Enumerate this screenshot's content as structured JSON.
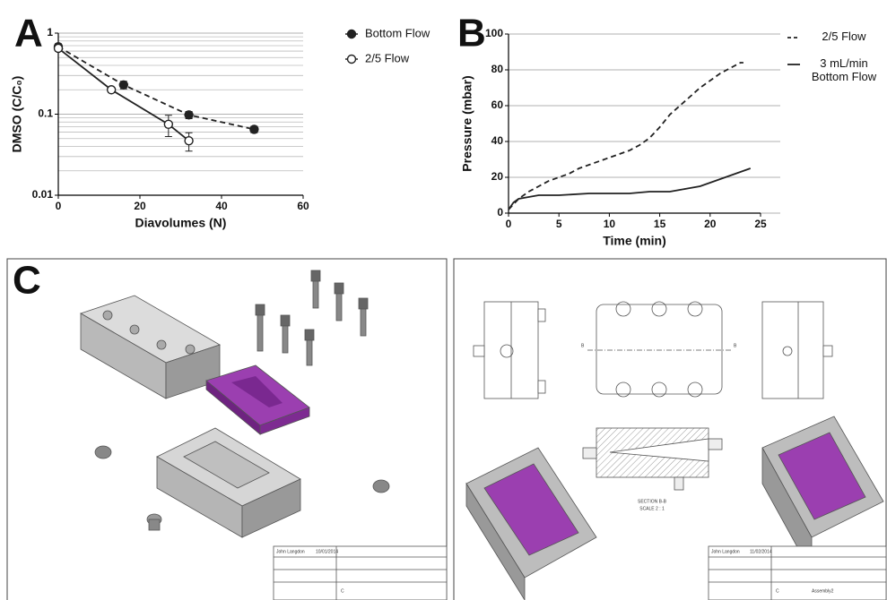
{
  "chart_data": [
    {
      "type": "line",
      "panel_label": "A",
      "xlabel": "Diavolumes (N)",
      "ylabel": "DMSO (C/C₀)",
      "xlim": [
        0,
        60
      ],
      "xticks": [
        0,
        20,
        40,
        60
      ],
      "ylim": [
        0.01,
        1
      ],
      "yticks": [
        0.01,
        0.1,
        1
      ],
      "log_y": true,
      "grid": true,
      "yminorticks": [
        0.02,
        0.03,
        0.04,
        0.05,
        0.06,
        0.07,
        0.08,
        0.09,
        0.2,
        0.3,
        0.4,
        0.5,
        0.6,
        0.7,
        0.8,
        0.9
      ],
      "legend": "right",
      "series": [
        {
          "name": "Bottom Flow",
          "color": "#222",
          "dash": true,
          "marker": "filled",
          "x": [
            0,
            16,
            32,
            48
          ],
          "values": [
            0.68,
            0.23,
            0.098,
            0.065
          ],
          "errors": [
            0.06,
            0.025,
            0.01,
            0.006
          ]
        },
        {
          "name": "2/5 Flow",
          "color": "#222",
          "dash": false,
          "marker": "open",
          "x": [
            0,
            13,
            27,
            32
          ],
          "values": [
            0.65,
            0.2,
            0.075,
            0.047
          ],
          "errors": [
            0.05,
            0.015,
            0.022,
            0.012
          ]
        }
      ]
    },
    {
      "type": "line",
      "panel_label": "B",
      "xlabel": "Time (min)",
      "ylabel": "Pressure (mbar)",
      "xlim": [
        0,
        25
      ],
      "xticks": [
        0,
        5,
        10,
        15,
        20,
        25
      ],
      "ylim": [
        0,
        100
      ],
      "yticks": [
        0,
        20,
        40,
        60,
        80,
        100
      ],
      "log_y": false,
      "grid": true,
      "legend": "right",
      "series": [
        {
          "name": "2/5 Flow",
          "color": "#222",
          "dash": true,
          "marker": "none",
          "x": [
            0,
            1,
            2,
            3,
            4,
            5,
            6,
            7,
            8,
            9,
            10,
            11,
            12,
            13,
            14,
            15,
            16,
            17,
            18,
            19,
            20,
            21,
            22,
            23,
            23.3
          ],
          "values": [
            2,
            8,
            12,
            15,
            18,
            20,
            22,
            25,
            27,
            29,
            31,
            33,
            35,
            38,
            42,
            48,
            55,
            60,
            65,
            70,
            74,
            78,
            81,
            84,
            84
          ]
        },
        {
          "name": "3 mL/min Bottom Flow",
          "color": "#222",
          "dash": false,
          "marker": "none",
          "x": [
            0,
            0.5,
            1,
            2,
            3,
            5,
            8,
            10,
            12,
            14,
            16,
            17,
            18,
            19,
            20,
            21,
            22,
            23,
            24
          ],
          "values": [
            2,
            6,
            8,
            9,
            10,
            10,
            11,
            11,
            11,
            12,
            12,
            13,
            14,
            15,
            17,
            19,
            21,
            23,
            25
          ]
        }
      ]
    }
  ],
  "drawing": {
    "panel_label": "C",
    "section": "SECTION B-B",
    "scale": "SCALE 2 : 1",
    "section_mark": "B",
    "left_block": {
      "drawn": "John Langdon",
      "date": "10/01/2014",
      "size": "C"
    },
    "right_block": {
      "drawn": "John Langdon",
      "date": "11/02/2014",
      "size": "C",
      "dwg": "Assembly2"
    }
  }
}
